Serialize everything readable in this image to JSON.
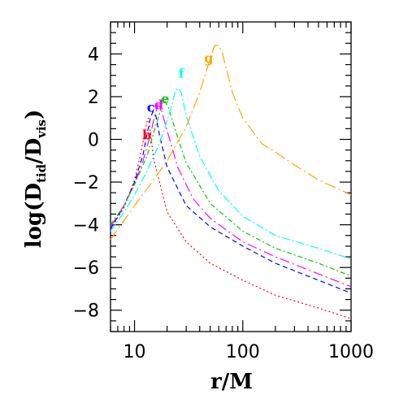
{
  "chart_data": {
    "type": "line",
    "x_scale": "log",
    "xlim": [
      6,
      1000
    ],
    "ylim": [
      -9,
      5.5
    ],
    "xlabel": "r/M",
    "ylabel": {
      "prefix": "log(D",
      "sub1": "tid",
      "mid": "/D",
      "sub2": "vis",
      "suffix": ")"
    },
    "x_ticks": [
      {
        "value": 10,
        "label": "10"
      },
      {
        "value": 100,
        "label": "100"
      },
      {
        "value": 1000,
        "label": "1000"
      }
    ],
    "y_ticks": [
      {
        "value": 4,
        "label": "4"
      },
      {
        "value": 2,
        "label": "2"
      },
      {
        "value": 0,
        "label": "0"
      },
      {
        "value": -2,
        "label": "−2"
      },
      {
        "value": -4,
        "label": "−4"
      },
      {
        "value": -6,
        "label": "−6"
      },
      {
        "value": -8,
        "label": "−8"
      }
    ],
    "series": [
      {
        "name": "b",
        "color": "#ff0000",
        "dash": "2,3",
        "label_at": [
          11.8,
          0.0
        ],
        "points": [
          [
            6,
            -4.2
          ],
          [
            8,
            -3.2
          ],
          [
            10,
            -1.9
          ],
          [
            11,
            -1.0
          ],
          [
            12,
            -0.1
          ],
          [
            13,
            0.8
          ],
          [
            13.4,
            1.0
          ],
          [
            13.8,
            0.6
          ],
          [
            15,
            -0.9
          ],
          [
            20,
            -3.4
          ],
          [
            30,
            -4.8
          ],
          [
            50,
            -5.8
          ],
          [
            100,
            -6.6
          ],
          [
            200,
            -7.3
          ],
          [
            500,
            -7.9
          ],
          [
            1000,
            -8.4
          ]
        ]
      },
      {
        "name": "c",
        "color": "#0000ff",
        "dash": "6,4",
        "label_at": [
          13.0,
          1.3
        ],
        "points": [
          [
            6,
            -4.2
          ],
          [
            8,
            -3.1
          ],
          [
            10,
            -2.0
          ],
          [
            12,
            -0.7
          ],
          [
            13,
            0.2
          ],
          [
            14,
            1.0
          ],
          [
            14.8,
            1.3
          ],
          [
            15.6,
            1.2
          ],
          [
            17,
            0.2
          ],
          [
            20,
            -1.3
          ],
          [
            30,
            -3.1
          ],
          [
            50,
            -4.1
          ],
          [
            100,
            -5.0
          ],
          [
            200,
            -5.8
          ],
          [
            500,
            -6.6
          ],
          [
            1000,
            -7.2
          ]
        ]
      },
      {
        "name": "d",
        "color": "#ff00ff",
        "dash": "12,4,2,4",
        "label_at": [
          15.2,
          1.4
        ],
        "points": [
          [
            6,
            -4.1
          ],
          [
            8,
            -3.1
          ],
          [
            10,
            -2.1
          ],
          [
            12,
            -1.0
          ],
          [
            14,
            0.2
          ],
          [
            15.5,
            1.2
          ],
          [
            16.5,
            1.6
          ],
          [
            17.5,
            1.5
          ],
          [
            19,
            0.8
          ],
          [
            25,
            -1.3
          ],
          [
            35,
            -2.8
          ],
          [
            50,
            -3.7
          ],
          [
            100,
            -4.8
          ],
          [
            200,
            -5.5
          ],
          [
            500,
            -6.3
          ],
          [
            1000,
            -6.9
          ]
        ]
      },
      {
        "name": "e",
        "color": "#00cc00",
        "dash": "6,3,2,3",
        "label_at": [
          17.6,
          1.7
        ],
        "points": [
          [
            6,
            -4.0
          ],
          [
            8,
            -3.1
          ],
          [
            10,
            -2.1
          ],
          [
            13,
            -0.8
          ],
          [
            15,
            0.3
          ],
          [
            17,
            1.2
          ],
          [
            18,
            1.7
          ],
          [
            19,
            1.8
          ],
          [
            20.5,
            1.5
          ],
          [
            25,
            0.1
          ],
          [
            30,
            -1.1
          ],
          [
            50,
            -3.0
          ],
          [
            100,
            -4.3
          ],
          [
            200,
            -5.1
          ],
          [
            500,
            -5.8
          ],
          [
            1000,
            -6.4
          ]
        ]
      },
      {
        "name": "f",
        "color": "#00ffff",
        "dash": "10,3,2,3",
        "label_at": [
          25.5,
          2.9
        ],
        "points": [
          [
            6,
            -4.3
          ],
          [
            8,
            -3.4
          ],
          [
            10,
            -2.6
          ],
          [
            13,
            -1.5
          ],
          [
            16,
            -0.5
          ],
          [
            19,
            0.5
          ],
          [
            22,
            1.6
          ],
          [
            24,
            2.3
          ],
          [
            25.5,
            2.4
          ],
          [
            27,
            2.2
          ],
          [
            30,
            1.1
          ],
          [
            40,
            -0.8
          ],
          [
            60,
            -2.4
          ],
          [
            100,
            -3.6
          ],
          [
            200,
            -4.5
          ],
          [
            500,
            -5.1
          ],
          [
            1000,
            -5.6
          ]
        ]
      },
      {
        "name": "g",
        "color": "#ffa500",
        "dash": "14,4,2,4",
        "label_at": [
          44,
          3.6
        ],
        "points": [
          [
            6,
            -4.7
          ],
          [
            8,
            -3.8
          ],
          [
            10,
            -3.1
          ],
          [
            15,
            -1.9
          ],
          [
            20,
            -1.0
          ],
          [
            30,
            0.6
          ],
          [
            40,
            2.2
          ],
          [
            50,
            3.8
          ],
          [
            55,
            4.4
          ],
          [
            60,
            4.4
          ],
          [
            65,
            4.0
          ],
          [
            80,
            2.2
          ],
          [
            100,
            1.0
          ],
          [
            150,
            -0.2
          ],
          [
            200,
            -0.6
          ],
          [
            300,
            -1.2
          ],
          [
            500,
            -1.9
          ],
          [
            1000,
            -2.6
          ]
        ]
      }
    ]
  }
}
